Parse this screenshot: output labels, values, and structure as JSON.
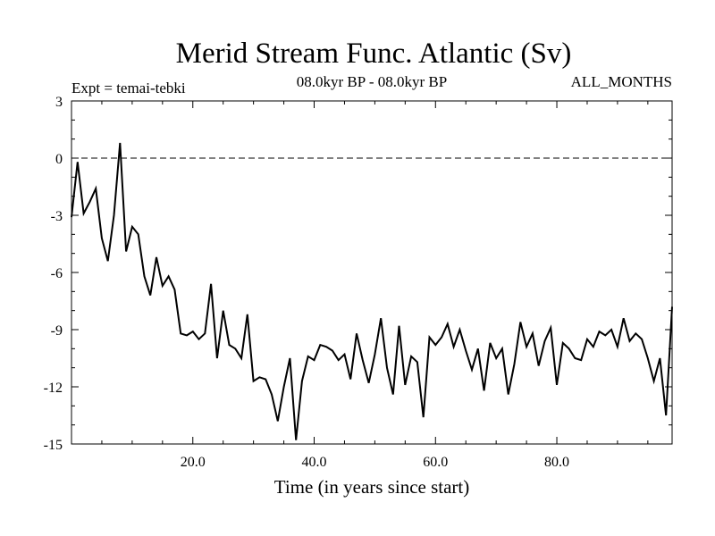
{
  "chart_data": {
    "type": "line",
    "title": "Merid Stream Func. Atlantic (Sv)",
    "subtitle": "08.0kyr BP - 08.0kyr BP",
    "left_note": "Expt = temai-tebki",
    "right_note": "ALL_MONTHS",
    "xlabel": "Time (in years since start)",
    "ylabel": "",
    "xlim": [
      0,
      99
    ],
    "ylim": [
      -15,
      3
    ],
    "x_ticks": [
      20,
      40,
      60,
      80
    ],
    "x_tick_labels": [
      "20.0",
      "40.0",
      "60.0",
      "80.0"
    ],
    "y_ticks": [
      3,
      0,
      -3,
      -6,
      -9,
      -12,
      -15
    ],
    "y_tick_labels": [
      "3",
      "0",
      "-3",
      "-6",
      "-9",
      "-12",
      "-15"
    ],
    "reference_line": {
      "y": 0,
      "style": "dashed"
    },
    "series": [
      {
        "name": "Merid Stream Func. Atlantic",
        "x_start": 0,
        "x_step": 1,
        "values": [
          -3.1,
          -0.2,
          -2.9,
          -2.3,
          -1.6,
          -4.2,
          -5.4,
          -3.0,
          0.8,
          -4.9,
          -3.6,
          -4.0,
          -6.2,
          -7.2,
          -5.2,
          -6.7,
          -6.2,
          -6.9,
          -9.2,
          -9.3,
          -9.1,
          -9.5,
          -9.2,
          -6.6,
          -10.5,
          -8.0,
          -9.8,
          -10.0,
          -10.5,
          -8.2,
          -11.7,
          -11.5,
          -11.6,
          -12.4,
          -13.8,
          -12.0,
          -10.5,
          -14.8,
          -11.7,
          -10.4,
          -10.6,
          -9.8,
          -9.9,
          -10.1,
          -10.6,
          -10.3,
          -11.6,
          -9.2,
          -10.6,
          -11.8,
          -10.3,
          -8.4,
          -11.0,
          -12.4,
          -8.8,
          -11.9,
          -10.4,
          -10.7,
          -13.6,
          -9.4,
          -9.8,
          -9.4,
          -8.7,
          -9.9,
          -9.0,
          -10.1,
          -11.1,
          -10.0,
          -12.2,
          -9.7,
          -10.5,
          -10.0,
          -12.4,
          -10.8,
          -8.6,
          -9.9,
          -9.2,
          -10.9,
          -9.6,
          -8.9,
          -11.9,
          -9.7,
          -10.0,
          -10.5,
          -10.6,
          -9.5,
          -9.9,
          -9.1,
          -9.3,
          -9.0,
          -9.9,
          -8.4,
          -9.6,
          -9.2,
          -9.5,
          -10.5,
          -11.7,
          -10.5,
          -13.5,
          -7.8
        ]
      }
    ]
  }
}
